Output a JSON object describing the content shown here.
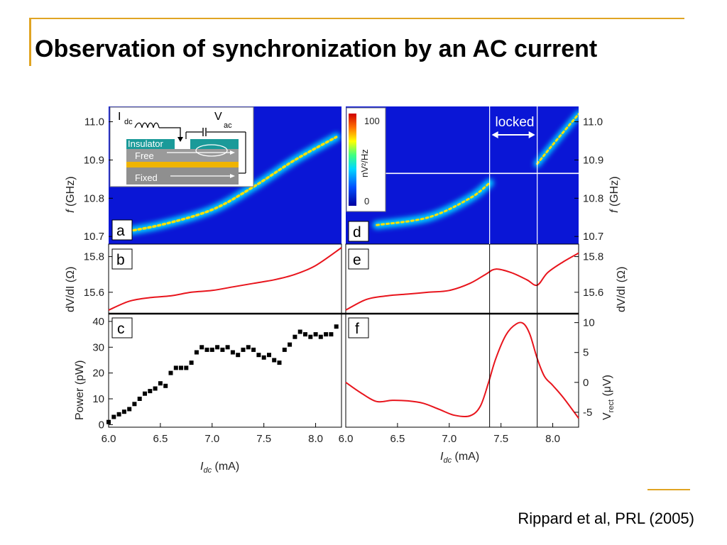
{
  "slide": {
    "title": "Observation of synchronization by an AC current",
    "citation": "Rippard et al, PRL (2005)",
    "accent_color": "#e0a423"
  },
  "figure": {
    "inset": {
      "current_label": "I",
      "current_sub": "dc",
      "voltage_label": "V",
      "voltage_sub": "ac",
      "layers": [
        "Insulator",
        "Free",
        "Fixed"
      ]
    },
    "colorbar": {
      "label": "nV²/Hz",
      "max": "100",
      "min": "0"
    },
    "locked_label": "locked",
    "locked_range": [
      7.39,
      7.85
    ]
  },
  "chart_data": [
    {
      "panel": "a",
      "type": "heatmap",
      "ylabel": "f (GHz)",
      "y_ticks": [
        "10.7",
        "10.8",
        "10.9",
        "11.0"
      ],
      "ylim": [
        10.68,
        11.04
      ],
      "xlim": [
        6.0,
        8.25
      ],
      "ridge": {
        "x": [
          6.1,
          6.5,
          7.0,
          7.4,
          7.8,
          8.2
        ],
        "y": [
          10.71,
          10.73,
          10.77,
          10.83,
          10.9,
          10.96
        ]
      }
    },
    {
      "panel": "d",
      "type": "heatmap",
      "ylabel": "f (GHz)",
      "y_ticks": [
        "10.7",
        "10.8",
        "10.9",
        "11.0"
      ],
      "ylim": [
        10.68,
        11.04
      ],
      "xlim": [
        6.0,
        8.25
      ],
      "locked_freq": 10.865,
      "ridge_below": {
        "x": [
          6.3,
          6.8,
          7.2,
          7.39
        ],
        "y": [
          10.73,
          10.75,
          10.8,
          10.84
        ]
      },
      "ridge_above": {
        "x": [
          7.85,
          8.0,
          8.25
        ],
        "y": [
          10.89,
          10.94,
          11.02
        ]
      }
    },
    {
      "panel": "b",
      "type": "line",
      "ylabel": "dV/dI (Ω)",
      "y_ticks": [
        "15.6",
        "15.8"
      ],
      "ylim": [
        15.48,
        15.87
      ],
      "xlim": [
        6.0,
        8.25
      ],
      "x": [
        6.0,
        6.2,
        6.4,
        6.6,
        6.8,
        7.0,
        7.2,
        7.4,
        7.6,
        7.8,
        8.0,
        8.25
      ],
      "y": [
        15.5,
        15.55,
        15.57,
        15.58,
        15.6,
        15.61,
        15.63,
        15.65,
        15.67,
        15.7,
        15.75,
        15.85
      ]
    },
    {
      "panel": "e",
      "type": "line",
      "ylabel": "dV/dI (Ω)",
      "y_ticks": [
        "15.6",
        "15.8"
      ],
      "ylim": [
        15.48,
        15.87
      ],
      "xlim": [
        6.0,
        8.25
      ],
      "x": [
        6.0,
        6.2,
        6.4,
        6.6,
        6.8,
        7.0,
        7.2,
        7.35,
        7.45,
        7.6,
        7.75,
        7.85,
        7.95,
        8.1,
        8.25
      ],
      "y": [
        15.5,
        15.56,
        15.58,
        15.59,
        15.6,
        15.61,
        15.65,
        15.7,
        15.73,
        15.71,
        15.67,
        15.64,
        15.71,
        15.77,
        15.82
      ]
    },
    {
      "panel": "c",
      "type": "scatter",
      "xlabel": "Idc (mA)",
      "ylabel": "Power (pW)",
      "x_ticks": [
        "6.0",
        "6.5",
        "7.0",
        "7.5",
        "8.0"
      ],
      "y_ticks": [
        "0",
        "10",
        "20",
        "30",
        "40"
      ],
      "xlim": [
        6.0,
        8.25
      ],
      "ylim": [
        -1,
        43
      ],
      "x": [
        6.0,
        6.05,
        6.1,
        6.15,
        6.2,
        6.25,
        6.3,
        6.35,
        6.4,
        6.45,
        6.5,
        6.55,
        6.6,
        6.65,
        6.7,
        6.75,
        6.8,
        6.85,
        6.9,
        6.95,
        7.0,
        7.05,
        7.1,
        7.15,
        7.2,
        7.25,
        7.3,
        7.35,
        7.4,
        7.45,
        7.5,
        7.55,
        7.6,
        7.65,
        7.7,
        7.75,
        7.8,
        7.85,
        7.9,
        7.95,
        8.0,
        8.05,
        8.1,
        8.15,
        8.2
      ],
      "y": [
        1,
        3,
        4,
        5,
        6,
        8,
        10,
        12,
        13,
        14,
        16,
        15,
        20,
        22,
        22,
        22,
        24,
        28,
        30,
        29,
        29,
        30,
        29,
        30,
        28,
        27,
        29,
        30,
        29,
        27,
        26,
        27,
        25,
        24,
        29,
        31,
        34,
        36,
        35,
        34,
        35,
        34,
        35,
        35,
        38
      ]
    },
    {
      "panel": "f",
      "type": "line",
      "xlabel": "Idc (mA)",
      "ylabel": "Vrect (μV)",
      "x_ticks": [
        "6.0",
        "6.5",
        "7.0",
        "7.5",
        "8.0"
      ],
      "y_ticks": [
        "-5",
        "0",
        "5",
        "10"
      ],
      "xlim": [
        6.0,
        8.25
      ],
      "ylim": [
        -7.5,
        11.5
      ],
      "x": [
        6.0,
        6.15,
        6.3,
        6.45,
        6.6,
        6.75,
        6.9,
        7.05,
        7.2,
        7.3,
        7.38,
        7.45,
        7.55,
        7.65,
        7.72,
        7.78,
        7.85,
        7.92,
        8.0,
        8.1,
        8.25
      ],
      "y": [
        0,
        -1.8,
        -3.2,
        -3,
        -3.1,
        -3.5,
        -4.5,
        -5.5,
        -5.6,
        -4,
        0,
        4,
        8,
        9.8,
        9.8,
        8,
        4,
        1,
        -0.5,
        -2.5,
        -6
      ]
    }
  ]
}
